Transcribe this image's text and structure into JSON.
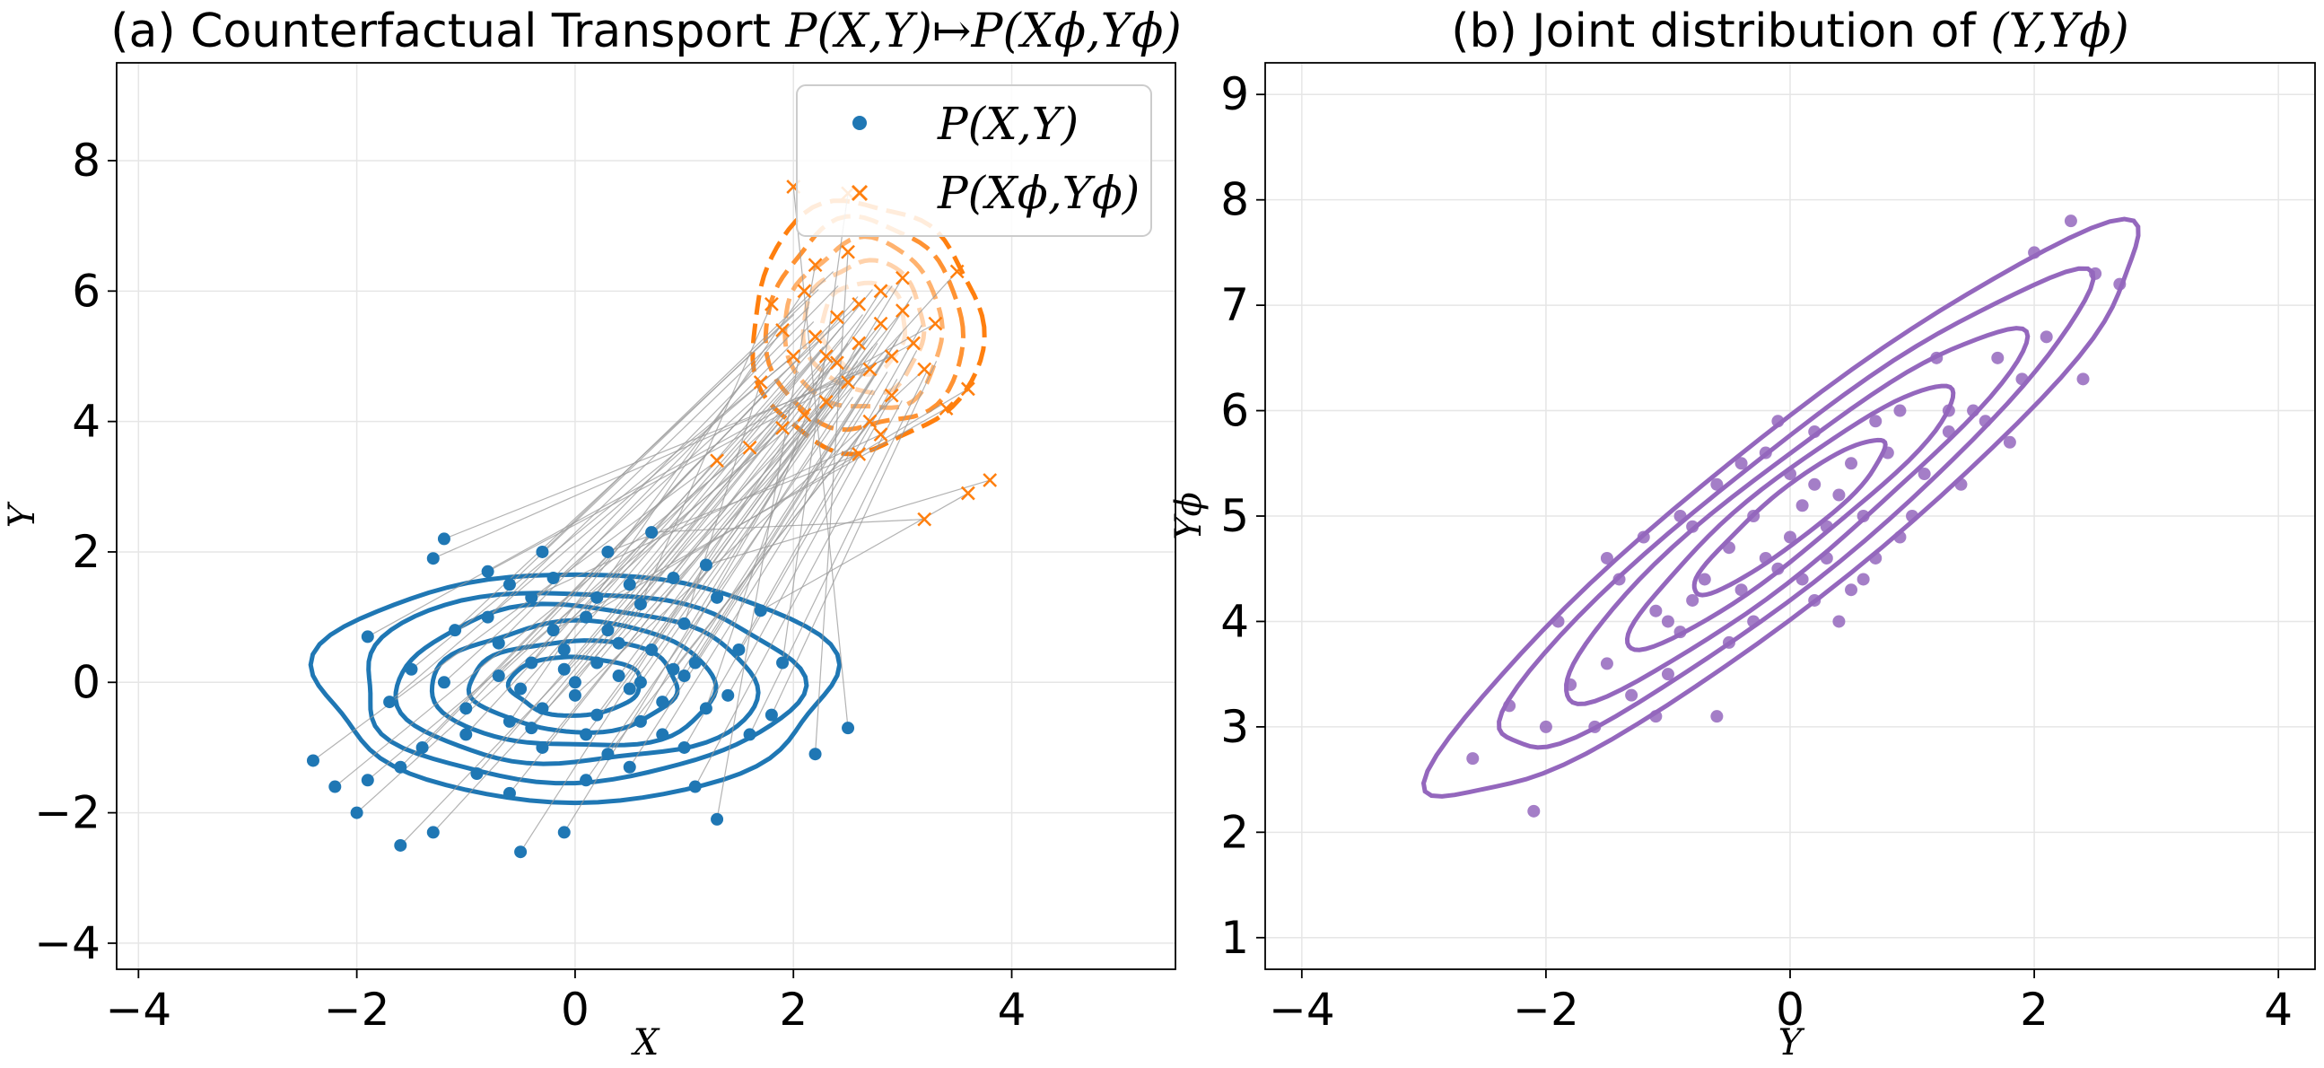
{
  "chart_data": [
    {
      "type": "scatter",
      "title_prefix": "(a) Counterfactual Transport ",
      "title_math": "P(X,Y)↦P(Xϕ,Yϕ)",
      "xlabel": "X",
      "ylabel": "Y",
      "xlim": [
        -4.2,
        5.5
      ],
      "ylim": [
        -4.4,
        9.5
      ],
      "xticks": [
        -4,
        -2,
        0,
        2,
        4
      ],
      "yticks": [
        -4,
        -2,
        0,
        2,
        4,
        6,
        8
      ],
      "grid": true,
      "legend_position": "top-right",
      "legend": [
        "P(X,Y)",
        "P(Xϕ,Yϕ)"
      ],
      "colors": {
        "source": "#1f77b4",
        "target": "#ff7f0e",
        "link": "#999999"
      },
      "shift": [
        2.5,
        5.2
      ],
      "series": [
        {
          "name": "P(X,Y)",
          "marker": "circle",
          "points": [
            [
              -2.4,
              -1.2
            ],
            [
              -2.2,
              -1.6
            ],
            [
              -2.0,
              -2.0
            ],
            [
              -1.9,
              -1.5
            ],
            [
              -1.6,
              -2.5
            ],
            [
              -1.3,
              -2.3
            ],
            [
              -1.2,
              2.2
            ],
            [
              -1.3,
              1.9
            ],
            [
              -0.8,
              1.7
            ],
            [
              -1.9,
              0.7
            ],
            [
              -1.5,
              0.2
            ],
            [
              -1.7,
              -0.3
            ],
            [
              -1.0,
              -0.4
            ],
            [
              -1.2,
              0.0
            ],
            [
              -0.5,
              -2.6
            ],
            [
              -0.1,
              -2.3
            ],
            [
              1.3,
              -2.1
            ],
            [
              2.2,
              -1.1
            ],
            [
              2.5,
              -0.7
            ],
            [
              1.9,
              0.3
            ],
            [
              1.7,
              1.1
            ],
            [
              1.2,
              1.8
            ],
            [
              0.7,
              2.3
            ],
            [
              0.3,
              2.0
            ],
            [
              -0.4,
              1.3
            ],
            [
              -0.2,
              0.8
            ],
            [
              0.1,
              1.0
            ],
            [
              0.4,
              0.6
            ],
            [
              0.6,
              1.2
            ],
            [
              1.0,
              0.9
            ],
            [
              0.9,
              0.2
            ],
            [
              1.2,
              -0.4
            ],
            [
              0.6,
              -0.6
            ],
            [
              0.3,
              -1.1
            ],
            [
              -0.3,
              -1.0
            ],
            [
              -0.6,
              -0.6
            ],
            [
              -0.7,
              0.1
            ],
            [
              -0.4,
              0.3
            ],
            [
              0.0,
              -0.2
            ],
            [
              0.2,
              0.3
            ],
            [
              0.5,
              -0.1
            ],
            [
              0.8,
              -0.3
            ],
            [
              -0.1,
              0.5
            ],
            [
              0.0,
              0.0
            ],
            [
              -0.3,
              -0.4
            ],
            [
              0.4,
              0.1
            ],
            [
              0.2,
              -0.5
            ],
            [
              -0.5,
              -0.1
            ],
            [
              0.7,
              0.5
            ],
            [
              1.1,
              0.3
            ],
            [
              1.4,
              -0.2
            ],
            [
              1.5,
              0.5
            ],
            [
              -0.9,
              -1.4
            ],
            [
              -0.6,
              -1.7
            ],
            [
              0.1,
              -1.5
            ],
            [
              0.5,
              -1.3
            ],
            [
              1.0,
              -1.0
            ],
            [
              -1.1,
              0.8
            ],
            [
              -0.8,
              1.0
            ],
            [
              0.9,
              1.6
            ],
            [
              1.3,
              1.3
            ],
            [
              -0.2,
              1.6
            ],
            [
              0.5,
              1.5
            ],
            [
              -1.4,
              -1.0
            ],
            [
              -1.6,
              -1.3
            ],
            [
              1.6,
              -0.8
            ],
            [
              1.8,
              -0.5
            ],
            [
              -0.3,
              2.0
            ],
            [
              0.1,
              -0.8
            ],
            [
              -0.1,
              0.2
            ],
            [
              0.3,
              0.8
            ],
            [
              0.6,
              0.0
            ],
            [
              -0.7,
              0.6
            ],
            [
              -1.0,
              -0.8
            ],
            [
              0.8,
              -0.8
            ],
            [
              1.0,
              0.1
            ],
            [
              -0.4,
              -0.7
            ],
            [
              0.2,
              1.3
            ],
            [
              -0.6,
              1.5
            ],
            [
              1.1,
              -1.6
            ]
          ]
        },
        {
          "name": "P(Xϕ,Yϕ)",
          "marker": "x",
          "points": [
            [
              1.3,
              3.4
            ],
            [
              1.6,
              3.6
            ],
            [
              1.9,
              3.9
            ],
            [
              2.1,
              4.1
            ],
            [
              2.3,
              4.3
            ],
            [
              2.5,
              4.6
            ],
            [
              2.7,
              4.8
            ],
            [
              2.9,
              5.0
            ],
            [
              3.1,
              5.2
            ],
            [
              3.3,
              5.5
            ],
            [
              2.0,
              5.0
            ],
            [
              2.2,
              5.3
            ],
            [
              2.4,
              5.6
            ],
            [
              2.6,
              5.8
            ],
            [
              2.8,
              6.0
            ],
            [
              3.0,
              6.2
            ],
            [
              2.2,
              6.4
            ],
            [
              2.5,
              6.6
            ],
            [
              2.0,
              7.6
            ],
            [
              2.5,
              7.5
            ],
            [
              3.6,
              2.9
            ],
            [
              3.8,
              3.1
            ],
            [
              3.2,
              2.5
            ],
            [
              2.6,
              3.5
            ],
            [
              2.8,
              3.8
            ],
            [
              3.4,
              4.2
            ],
            [
              3.6,
              4.5
            ],
            [
              3.5,
              6.3
            ],
            [
              1.8,
              5.8
            ],
            [
              1.7,
              4.6
            ],
            [
              2.9,
              4.4
            ],
            [
              2.3,
              5.0
            ],
            [
              2.6,
              5.2
            ],
            [
              2.7,
              4.0
            ],
            [
              3.0,
              5.7
            ],
            [
              2.1,
              6.0
            ],
            [
              2.4,
              4.9
            ],
            [
              1.9,
              5.4
            ],
            [
              3.2,
              4.8
            ],
            [
              2.8,
              5.5
            ]
          ]
        }
      ]
    },
    {
      "type": "scatter",
      "title_prefix": "(b) Joint distribution of ",
      "title_math": "(Y,Yϕ)",
      "xlabel": "Y",
      "ylabel": "Yϕ",
      "xlim": [
        -4.3,
        4.3
      ],
      "ylim": [
        0.7,
        9.3
      ],
      "xticks": [
        -4,
        -2,
        0,
        2,
        4
      ],
      "yticks": [
        1,
        2,
        3,
        4,
        5,
        6,
        7,
        8,
        9
      ],
      "grid": true,
      "colors": {
        "points": "#9467bd"
      },
      "series": [
        {
          "name": "",
          "marker": "circle",
          "points": [
            [
              -2.6,
              2.7
            ],
            [
              -2.3,
              3.2
            ],
            [
              -2.1,
              2.2
            ],
            [
              -2.0,
              3.0
            ],
            [
              -1.8,
              3.4
            ],
            [
              -1.5,
              3.6
            ],
            [
              -1.3,
              3.3
            ],
            [
              -1.1,
              3.1
            ],
            [
              -1.0,
              4.0
            ],
            [
              -0.9,
              3.9
            ],
            [
              -0.6,
              3.1
            ],
            [
              -0.5,
              3.8
            ],
            [
              -0.3,
              4.0
            ],
            [
              -0.1,
              4.5
            ],
            [
              0.1,
              4.4
            ],
            [
              0.3,
              4.6
            ],
            [
              0.5,
              4.3
            ],
            [
              0.7,
              4.6
            ],
            [
              0.9,
              4.8
            ],
            [
              1.1,
              5.4
            ],
            [
              1.3,
              5.8
            ],
            [
              1.5,
              6.0
            ],
            [
              1.7,
              6.5
            ],
            [
              1.9,
              6.3
            ],
            [
              2.1,
              6.7
            ],
            [
              2.3,
              7.8
            ],
            [
              2.5,
              7.3
            ],
            [
              2.7,
              7.2
            ],
            [
              -1.9,
              4.0
            ],
            [
              -1.4,
              4.4
            ],
            [
              -1.2,
              4.8
            ],
            [
              -0.8,
              4.9
            ],
            [
              -0.6,
              5.3
            ],
            [
              -0.4,
              5.5
            ],
            [
              -0.2,
              5.6
            ],
            [
              0.0,
              5.4
            ],
            [
              0.2,
              5.8
            ],
            [
              0.4,
              5.2
            ],
            [
              0.6,
              5.0
            ],
            [
              0.8,
              5.6
            ],
            [
              -0.7,
              4.4
            ],
            [
              -0.5,
              4.7
            ],
            [
              -0.3,
              5.0
            ],
            [
              0.1,
              5.1
            ],
            [
              0.3,
              4.9
            ],
            [
              0.5,
              5.5
            ],
            [
              0.9,
              6.0
            ],
            [
              1.2,
              6.5
            ],
            [
              1.6,
              5.9
            ],
            [
              2.0,
              7.5
            ],
            [
              -1.6,
              3.0
            ],
            [
              -1.0,
              3.5
            ],
            [
              -0.8,
              4.2
            ],
            [
              0.0,
              4.8
            ],
            [
              0.2,
              4.2
            ],
            [
              0.4,
              4.0
            ],
            [
              0.6,
              4.4
            ],
            [
              -0.2,
              4.6
            ],
            [
              -0.4,
              4.3
            ],
            [
              1.0,
              5.0
            ],
            [
              -1.5,
              4.6
            ],
            [
              0.7,
              5.9
            ],
            [
              1.4,
              5.3
            ],
            [
              1.8,
              5.7
            ],
            [
              -0.9,
              5.0
            ],
            [
              2.4,
              6.3
            ],
            [
              -1.1,
              4.1
            ],
            [
              0.2,
              5.3
            ],
            [
              -0.1,
              5.9
            ],
            [
              1.3,
              6.0
            ]
          ]
        }
      ]
    }
  ]
}
